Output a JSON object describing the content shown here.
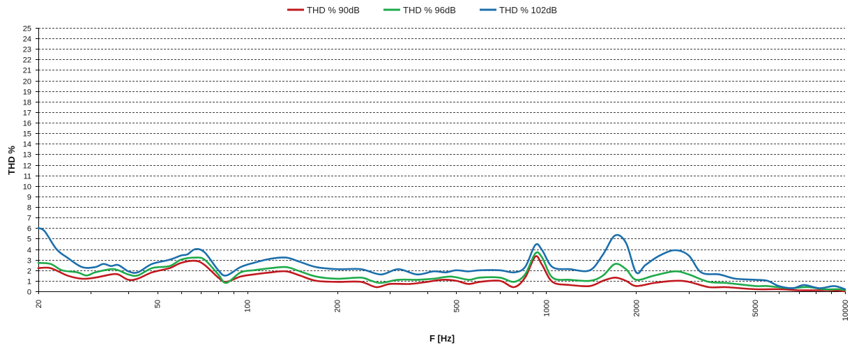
{
  "chart_data": {
    "type": "line",
    "xlabel": "F [Hz]",
    "ylabel": "THD %",
    "x_scale": "log",
    "xlim": [
      20,
      10000
    ],
    "ylim": [
      0,
      25
    ],
    "grid": true,
    "legend_position": "top",
    "x_ticks": [
      20,
      50,
      100,
      200,
      500,
      1000,
      2000,
      5000,
      10000
    ],
    "x_tick_labels": [
      "20",
      "50",
      "100",
      "200",
      "500",
      "1000",
      "2000",
      "5000",
      "10000"
    ],
    "y_ticks": [
      0,
      1,
      2,
      3,
      4,
      5,
      6,
      7,
      8,
      9,
      10,
      11,
      12,
      13,
      14,
      15,
      16,
      17,
      18,
      19,
      20,
      21,
      22,
      23,
      24,
      25
    ],
    "y_tick_labels": [
      "0",
      "1",
      "2",
      "3",
      "4",
      "5",
      "6",
      "7",
      "8",
      "9",
      "10",
      "11",
      "12",
      "13",
      "14",
      "15",
      "16",
      "17",
      "18",
      "19",
      "20",
      "21",
      "22",
      "23",
      "24",
      "25"
    ],
    "series": [
      {
        "name": "THD % 90dB",
        "color": "#c0191e",
        "points": [
          [
            20,
            2.2
          ],
          [
            22,
            2.2
          ],
          [
            25,
            1.5
          ],
          [
            28,
            1.2
          ],
          [
            31,
            1.3
          ],
          [
            35,
            1.6
          ],
          [
            37,
            1.6
          ],
          [
            40,
            1.1
          ],
          [
            43,
            1.2
          ],
          [
            48,
            1.8
          ],
          [
            55,
            2.2
          ],
          [
            60,
            2.7
          ],
          [
            67,
            2.9
          ],
          [
            72,
            2.5
          ],
          [
            80,
            1.3
          ],
          [
            85,
            0.9
          ],
          [
            95,
            1.4
          ],
          [
            105,
            1.6
          ],
          [
            120,
            1.8
          ],
          [
            135,
            1.9
          ],
          [
            150,
            1.5
          ],
          [
            170,
            1.0
          ],
          [
            200,
            0.9
          ],
          [
            240,
            0.9
          ],
          [
            270,
            0.4
          ],
          [
            300,
            0.7
          ],
          [
            350,
            0.7
          ],
          [
            400,
            0.9
          ],
          [
            450,
            1.1
          ],
          [
            500,
            1.0
          ],
          [
            550,
            0.7
          ],
          [
            600,
            0.9
          ],
          [
            700,
            1.0
          ],
          [
            780,
            0.4
          ],
          [
            850,
            1.3
          ],
          [
            920,
            3.3
          ],
          [
            970,
            2.5
          ],
          [
            1050,
            0.9
          ],
          [
            1200,
            0.6
          ],
          [
            1400,
            0.5
          ],
          [
            1550,
            1.0
          ],
          [
            1700,
            1.3
          ],
          [
            1850,
            1.0
          ],
          [
            2000,
            0.5
          ],
          [
            2300,
            0.8
          ],
          [
            2700,
            1.0
          ],
          [
            3000,
            0.9
          ],
          [
            3500,
            0.4
          ],
          [
            4000,
            0.4
          ],
          [
            5000,
            0.2
          ],
          [
            6000,
            0.2
          ],
          [
            7000,
            0.1
          ],
          [
            8000,
            0.1
          ],
          [
            9000,
            0.1
          ],
          [
            10000,
            0.0
          ]
        ]
      },
      {
        "name": "THD % 96dB",
        "color": "#1faa4a",
        "points": [
          [
            20,
            2.7
          ],
          [
            22,
            2.6
          ],
          [
            24,
            2.0
          ],
          [
            27,
            1.8
          ],
          [
            29,
            1.5
          ],
          [
            31,
            1.8
          ],
          [
            35,
            2.1
          ],
          [
            37,
            2.0
          ],
          [
            40,
            1.6
          ],
          [
            43,
            1.5
          ],
          [
            48,
            2.2
          ],
          [
            55,
            2.4
          ],
          [
            60,
            3.0
          ],
          [
            67,
            3.2
          ],
          [
            72,
            3.0
          ],
          [
            80,
            1.6
          ],
          [
            85,
            0.8
          ],
          [
            95,
            1.8
          ],
          [
            105,
            2.0
          ],
          [
            120,
            2.2
          ],
          [
            135,
            2.3
          ],
          [
            150,
            1.9
          ],
          [
            170,
            1.4
          ],
          [
            200,
            1.2
          ],
          [
            240,
            1.3
          ],
          [
            260,
            1.0
          ],
          [
            280,
            0.8
          ],
          [
            320,
            1.1
          ],
          [
            370,
            1.1
          ],
          [
            420,
            1.2
          ],
          [
            480,
            1.4
          ],
          [
            550,
            1.1
          ],
          [
            600,
            1.3
          ],
          [
            700,
            1.3
          ],
          [
            780,
            0.9
          ],
          [
            850,
            1.6
          ],
          [
            920,
            3.6
          ],
          [
            970,
            3.2
          ],
          [
            1050,
            1.3
          ],
          [
            1200,
            1.1
          ],
          [
            1400,
            1.0
          ],
          [
            1550,
            1.5
          ],
          [
            1700,
            2.6
          ],
          [
            1850,
            2.1
          ],
          [
            2000,
            1.1
          ],
          [
            2300,
            1.5
          ],
          [
            2700,
            1.9
          ],
          [
            3000,
            1.6
          ],
          [
            3500,
            0.9
          ],
          [
            4000,
            0.8
          ],
          [
            5000,
            0.5
          ],
          [
            5500,
            0.5
          ],
          [
            6500,
            0.3
          ],
          [
            7500,
            0.4
          ],
          [
            8500,
            0.2
          ],
          [
            9500,
            0.2
          ],
          [
            10000,
            0.1
          ]
        ]
      },
      {
        "name": "THD % 102dB",
        "color": "#1c6fac",
        "points": [
          [
            20,
            6.0
          ],
          [
            21,
            5.7
          ],
          [
            23,
            4.0
          ],
          [
            25,
            3.2
          ],
          [
            28,
            2.3
          ],
          [
            31,
            2.3
          ],
          [
            33,
            2.6
          ],
          [
            35,
            2.4
          ],
          [
            37,
            2.5
          ],
          [
            40,
            1.9
          ],
          [
            43,
            1.8
          ],
          [
            48,
            2.6
          ],
          [
            55,
            3.0
          ],
          [
            60,
            3.4
          ],
          [
            63,
            3.5
          ],
          [
            67,
            4.0
          ],
          [
            72,
            3.7
          ],
          [
            80,
            2.0
          ],
          [
            85,
            1.5
          ],
          [
            95,
            2.3
          ],
          [
            105,
            2.7
          ],
          [
            120,
            3.1
          ],
          [
            135,
            3.2
          ],
          [
            150,
            2.8
          ],
          [
            170,
            2.3
          ],
          [
            200,
            2.1
          ],
          [
            240,
            2.1
          ],
          [
            280,
            1.6
          ],
          [
            320,
            2.1
          ],
          [
            370,
            1.6
          ],
          [
            420,
            1.9
          ],
          [
            460,
            1.8
          ],
          [
            500,
            2.0
          ],
          [
            550,
            1.9
          ],
          [
            600,
            2.0
          ],
          [
            700,
            2.0
          ],
          [
            780,
            1.8
          ],
          [
            850,
            2.3
          ],
          [
            920,
            4.4
          ],
          [
            970,
            3.9
          ],
          [
            1050,
            2.3
          ],
          [
            1200,
            2.1
          ],
          [
            1400,
            2.0
          ],
          [
            1550,
            3.5
          ],
          [
            1700,
            5.3
          ],
          [
            1850,
            4.6
          ],
          [
            2000,
            1.8
          ],
          [
            2150,
            2.5
          ],
          [
            2400,
            3.4
          ],
          [
            2700,
            3.9
          ],
          [
            3000,
            3.4
          ],
          [
            3300,
            1.8
          ],
          [
            3800,
            1.6
          ],
          [
            4300,
            1.2
          ],
          [
            5000,
            1.1
          ],
          [
            5500,
            1.0
          ],
          [
            6000,
            0.5
          ],
          [
            6700,
            0.3
          ],
          [
            7300,
            0.6
          ],
          [
            8200,
            0.3
          ],
          [
            9200,
            0.5
          ],
          [
            10000,
            0.2
          ]
        ]
      }
    ]
  }
}
